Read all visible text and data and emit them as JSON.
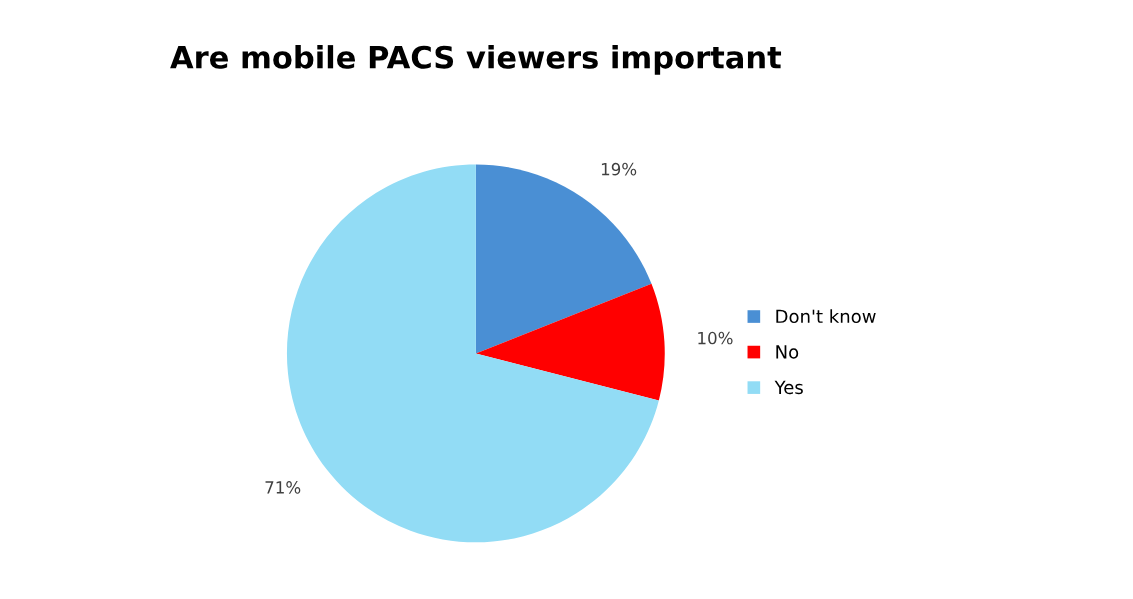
{
  "chart_data": {
    "type": "pie",
    "title": "Are mobile PACS viewers important",
    "categories": [
      "Don't know",
      "No",
      "Yes"
    ],
    "values": [
      19,
      10,
      71
    ],
    "value_labels": [
      "19%",
      "10%",
      "71%"
    ],
    "colors": [
      "#4a8fd4",
      "#ff0000",
      "#92dcf5"
    ],
    "legend": "right"
  }
}
